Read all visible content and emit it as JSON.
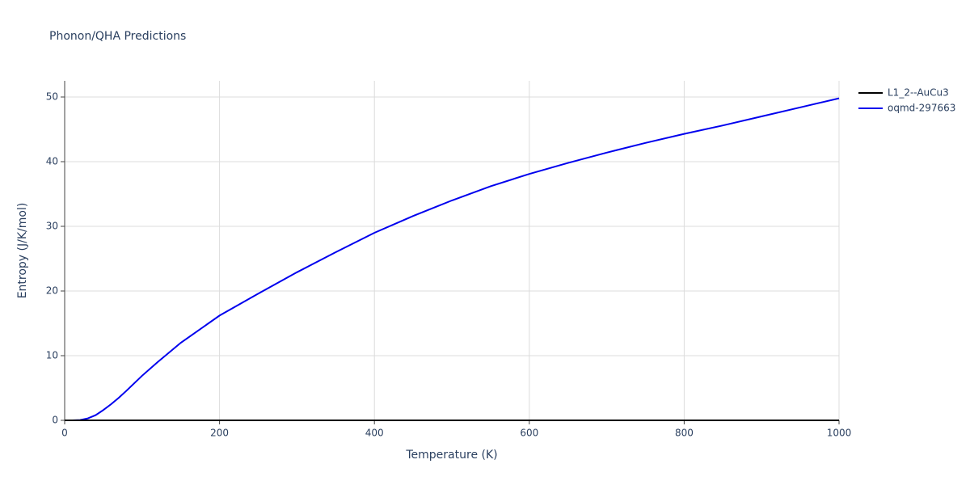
{
  "chart_data": {
    "type": "line",
    "title": "Phonon/QHA Predictions",
    "x_label": "Temperature (K)",
    "y_label": "Entropy (J/K/mol)",
    "x": [
      0,
      10,
      20,
      30,
      40,
      50,
      60,
      70,
      80,
      100,
      120,
      150,
      200,
      250,
      300,
      350,
      400,
      450,
      500,
      550,
      600,
      650,
      700,
      750,
      800,
      850,
      900,
      950,
      1000
    ],
    "series": [
      {
        "name": "L1_2--AuCu3",
        "color": "#000000",
        "values": [
          0,
          0,
          0,
          0,
          0,
          0,
          0,
          0,
          0,
          0,
          0,
          0,
          0,
          0,
          0,
          0,
          0,
          0,
          0,
          0,
          0,
          0,
          0,
          0,
          0,
          0,
          0,
          0,
          0
        ]
      },
      {
        "name": "oqmd-297663",
        "color": "#0000ee",
        "values": [
          0,
          0,
          0.05,
          0.3,
          0.8,
          1.6,
          2.5,
          3.5,
          4.6,
          6.9,
          9.0,
          12.0,
          16.2,
          19.6,
          22.9,
          26.0,
          29.0,
          31.6,
          34.0,
          36.2,
          38.1,
          39.8,
          41.4,
          42.9,
          44.3,
          45.6,
          47.0,
          48.4,
          49.8
        ]
      }
    ],
    "xlim": [
      0,
      1000
    ],
    "xticks": [
      0,
      200,
      400,
      600,
      800,
      1000
    ],
    "ylim": [
      0,
      52.5
    ],
    "yticks": [
      0,
      10,
      20,
      30,
      40,
      50
    ],
    "grid": true,
    "legend": "top-right"
  }
}
